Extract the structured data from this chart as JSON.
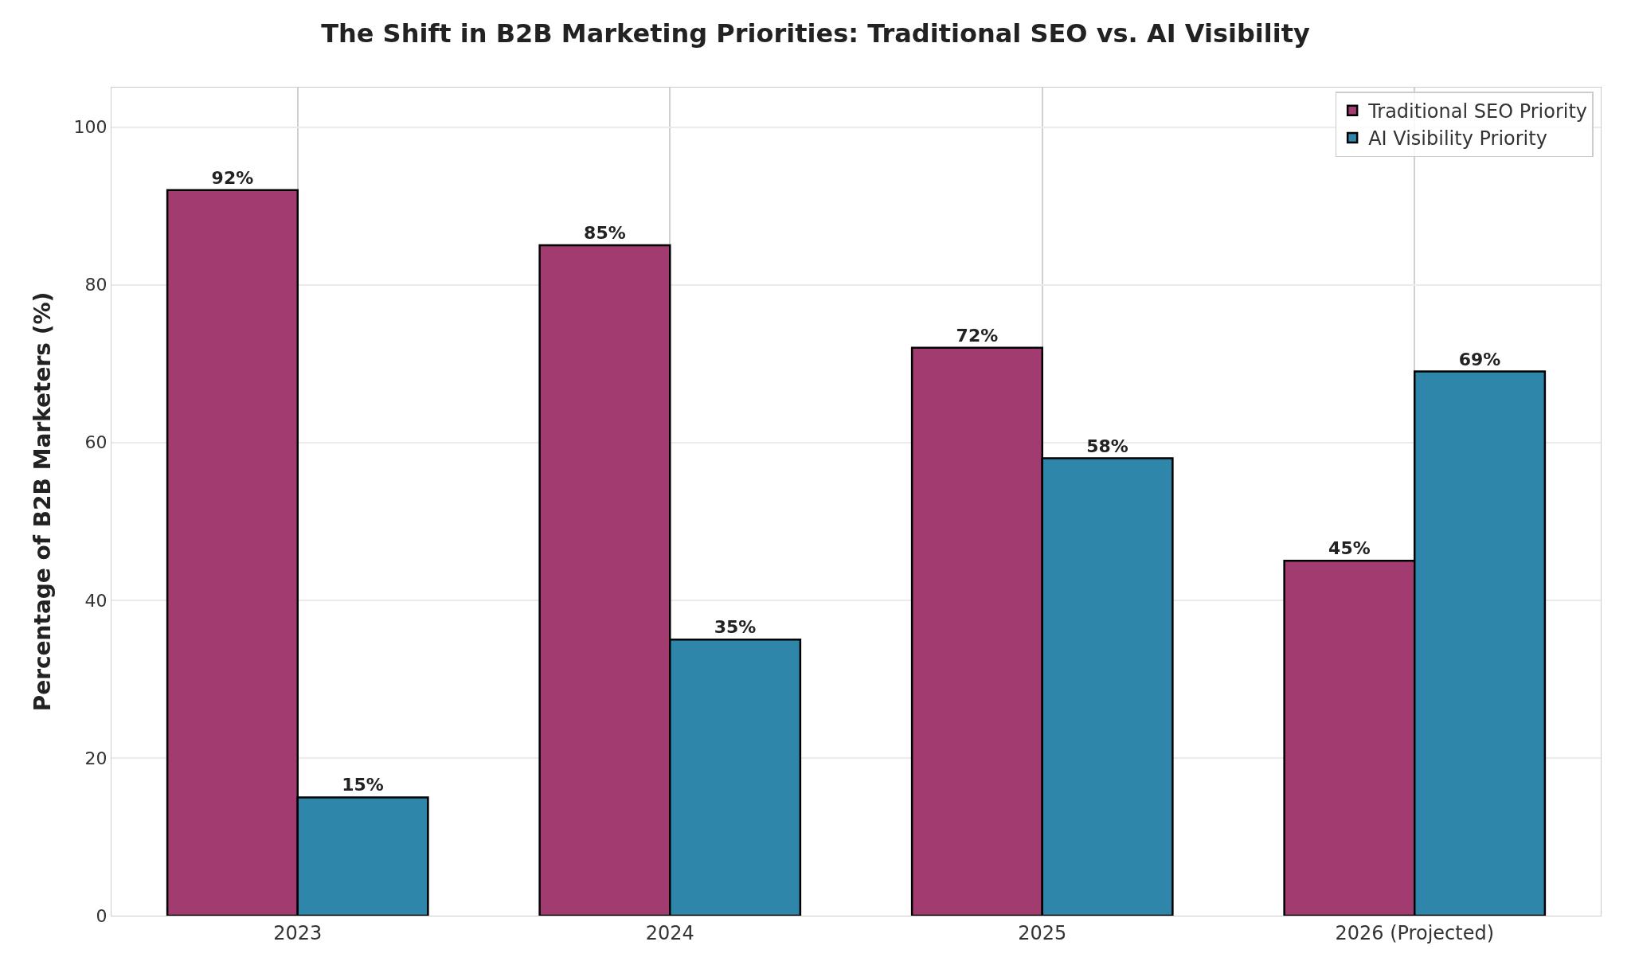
{
  "chart_data": {
    "type": "bar",
    "title": "The Shift in B2B Marketing Priorities: Traditional SEO vs. AI Visibility",
    "ylabel": "Percentage of B2B Marketers (%)",
    "categories": [
      "2023",
      "2024",
      "2025",
      "2026 (Projected)"
    ],
    "series": [
      {
        "name": "Traditional SEO Priority",
        "color": "#a23b6f",
        "values": [
          92,
          85,
          72,
          45
        ],
        "value_labels": [
          "92%",
          "85%",
          "72%",
          "45%"
        ]
      },
      {
        "name": "AI Visibility Priority",
        "color": "#2e86ab",
        "values": [
          15,
          35,
          58,
          69
        ],
        "value_labels": [
          "15%",
          "35%",
          "58%",
          "69%"
        ]
      }
    ],
    "ylim": [
      0,
      105
    ],
    "yticks": [
      0,
      20,
      40,
      60,
      80,
      100
    ],
    "grid": true,
    "legend": "top right"
  }
}
